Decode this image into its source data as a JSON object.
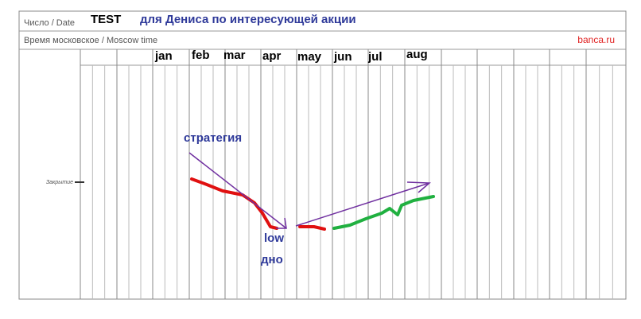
{
  "header": {
    "date_label": "Число / Date",
    "title": "TEST",
    "subtitle": "для Дениса по интересующей акции",
    "time_label": "Время московское / Moscow time",
    "site": "banca.ru"
  },
  "months": [
    "jan",
    "feb",
    "mar",
    "apr",
    "may",
    "jun",
    "jul",
    "aug"
  ],
  "row_label": "Закрытие",
  "annotations": {
    "strategy": "стратегия",
    "low": "low",
    "bottom": "дно"
  }
}
